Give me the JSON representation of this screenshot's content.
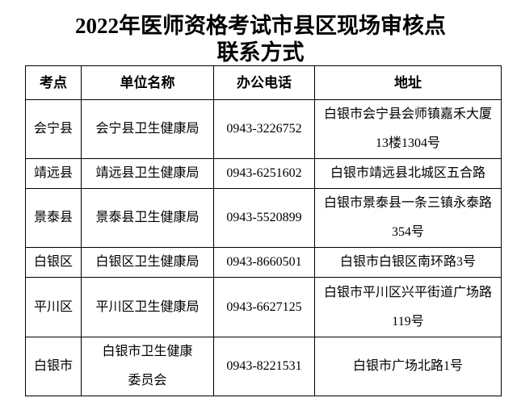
{
  "title": {
    "line1": "2022年医师资格考试市县区现场审核点",
    "line2": "联系方式"
  },
  "table": {
    "headers": [
      "考点",
      "单位名称",
      "办公电话",
      "地址"
    ],
    "rows": [
      [
        "会宁县",
        "会宁县卫生健康局",
        "0943-3226752",
        "白银市会宁县会师镇嘉禾大厦13楼1304号"
      ],
      [
        "靖远县",
        "靖远县卫生健康局",
        "0943-6251602",
        "白银市靖远县北城区五合路"
      ],
      [
        "景泰县",
        "景泰县卫生健康局",
        "0943-5520899",
        "白银市景泰县一条三镇永泰路354号"
      ],
      [
        "白银区",
        "白银区卫生健康局",
        "0943-8660501",
        "白银市白银区南环路3号"
      ],
      [
        "平川区",
        "平川区卫生健康局",
        "0943-6627125",
        "白银市平川区兴平街道广场路119号"
      ],
      [
        "白银市",
        "白银市卫生健康委员会",
        "0943-8221531",
        "白银市广场北路1号"
      ]
    ]
  }
}
